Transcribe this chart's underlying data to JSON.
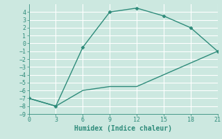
{
  "line1_x": [
    0,
    3,
    6,
    9,
    12,
    15,
    18,
    21
  ],
  "line1_y": [
    -7,
    -8,
    -0.5,
    4,
    4.5,
    3.5,
    2,
    -1
  ],
  "line2_x": [
    0,
    3,
    6,
    9,
    12,
    15,
    18,
    21
  ],
  "line2_y": [
    -7,
    -8,
    -6,
    -5.5,
    -5.5,
    -4,
    -2.5,
    -1
  ],
  "color": "#2e8b7a",
  "bg_color": "#cce8e0",
  "grid_color": "#ffffff",
  "xlabel": "Humidex (Indice chaleur)",
  "xlim": [
    0,
    21
  ],
  "ylim": [
    -9,
    5
  ],
  "xticks": [
    0,
    3,
    6,
    9,
    12,
    15,
    18,
    21
  ],
  "yticks": [
    -9,
    -8,
    -7,
    -6,
    -5,
    -4,
    -3,
    -2,
    -1,
    0,
    1,
    2,
    3,
    4
  ],
  "marker": "D",
  "marker_size": 2.5,
  "linewidth": 1.0,
  "xlabel_fontsize": 7,
  "tick_fontsize": 6
}
